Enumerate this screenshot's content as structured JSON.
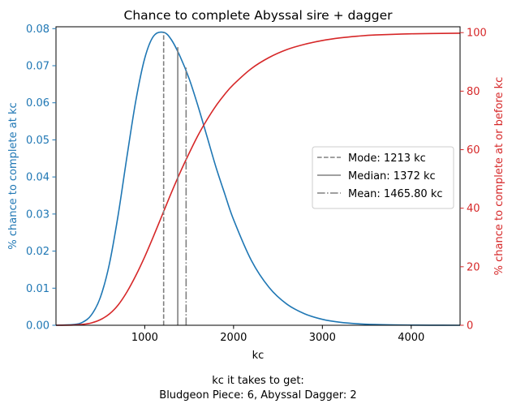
{
  "chart_data": {
    "type": "line",
    "title": "Chance to complete Abyssal sire + dagger",
    "xlabel": "kc",
    "ylabel_left": "% chance to complete at kc",
    "ylabel_right": "% chance to complete at or before kc",
    "xlim": [
      1,
      4550
    ],
    "ylim_left": [
      0,
      0.0805
    ],
    "ylim_right": [
      0,
      102
    ],
    "x_ticks": [
      1000,
      2000,
      3000,
      4000
    ],
    "y_left_ticks": [
      0.0,
      0.01,
      0.02,
      0.03,
      0.04,
      0.05,
      0.06,
      0.07,
      0.08
    ],
    "y_left_tick_labels": [
      "0.00",
      "0.01",
      "0.02",
      "0.03",
      "0.04",
      "0.05",
      "0.06",
      "0.07",
      "0.08"
    ],
    "y_right_ticks": [
      0,
      20,
      40,
      60,
      80,
      100
    ],
    "grid": false,
    "legend_position": "center-right",
    "colors": {
      "pmf": "#1f77b4",
      "cdf": "#d62728",
      "markers": "#808080"
    },
    "series": [
      {
        "axis": "left",
        "color": "#1f77b4",
        "x": [
          1,
          200,
          300,
          400,
          500,
          600,
          700,
          800,
          900,
          1000,
          1100,
          1213,
          1300,
          1400,
          1500,
          1600,
          1700,
          1800,
          1900,
          2000,
          2200,
          2400,
          2600,
          2800,
          3000,
          3200,
          3400,
          3600,
          3800,
          4000,
          4200,
          4550
        ],
        "values": [
          0,
          0.0002,
          0.0008,
          0.0028,
          0.0075,
          0.0163,
          0.0296,
          0.0455,
          0.0606,
          0.072,
          0.078,
          0.079,
          0.077,
          0.0724,
          0.0665,
          0.0591,
          0.051,
          0.0428,
          0.0355,
          0.0285,
          0.0175,
          0.0102,
          0.0057,
          0.0031,
          0.0016,
          0.0008,
          0.0004,
          0.0002,
          0.0001,
          5e-05,
          2e-05,
          0
        ]
      },
      {
        "axis": "right",
        "color": "#d62728",
        "x": [
          1,
          200,
          300,
          400,
          500,
          600,
          700,
          800,
          900,
          1000,
          1100,
          1200,
          1300,
          1400,
          1500,
          1600,
          1700,
          1800,
          1900,
          2000,
          2200,
          2400,
          2600,
          2800,
          3000,
          3200,
          3400,
          3600,
          4000,
          4550
        ],
        "values": [
          0,
          0.1,
          0.3,
          0.8,
          1.9,
          3.8,
          6.9,
          11.4,
          17.0,
          23.4,
          30.5,
          37.9,
          45.3,
          52.3,
          58.8,
          64.9,
          70.2,
          74.9,
          78.9,
          82.3,
          87.7,
          91.5,
          94.2,
          96.0,
          97.3,
          98.2,
          98.8,
          99.2,
          99.6,
          99.8
        ]
      }
    ],
    "vlines": [
      {
        "name": "Mode: 1213 kc",
        "x": 1213,
        "y_left": 0.079,
        "style": "dashed"
      },
      {
        "name": "Median: 1372 kc",
        "x": 1372,
        "y_left": 0.075,
        "style": "solid"
      },
      {
        "name": "Mean: 1465.80 kc",
        "x": 1465.8,
        "y_left": 0.07,
        "style": "dashdot"
      }
    ],
    "caption": [
      "kc it takes to get:",
      "Bludgeon Piece: 6,  Abyssal Dagger: 2"
    ]
  }
}
